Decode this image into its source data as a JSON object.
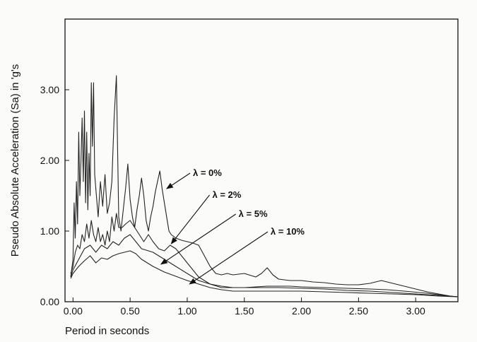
{
  "chart_data": {
    "type": "line",
    "xlabel": "Period in seconds",
    "ylabel": "Pseudo Absolute Acceleration (Sa) in 'g's",
    "xlim": [
      -0.07,
      3.37
    ],
    "ylim": [
      0.0,
      4.0
    ],
    "x_ticks": [
      0.0,
      0.5,
      1.0,
      1.5,
      2.0,
      2.5,
      3.0
    ],
    "x_tick_labels": [
      "0.00",
      "0.50",
      "1.00",
      "1.50",
      "2.00",
      "2.50",
      "3.00"
    ],
    "y_ticks": [
      0.0,
      1.0,
      2.0,
      3.0
    ],
    "y_tick_labels": [
      "0.00",
      "1.00",
      "2.00",
      "3.00"
    ],
    "grid": false,
    "series": [
      {
        "name": "λ = 0%",
        "x": [
          -0.02,
          0.0,
          0.01,
          0.02,
          0.03,
          0.04,
          0.05,
          0.06,
          0.07,
          0.08,
          0.09,
          0.1,
          0.11,
          0.12,
          0.13,
          0.14,
          0.15,
          0.16,
          0.17,
          0.18,
          0.19,
          0.2,
          0.22,
          0.24,
          0.26,
          0.28,
          0.3,
          0.32,
          0.34,
          0.36,
          0.38,
          0.4,
          0.42,
          0.44,
          0.46,
          0.48,
          0.5,
          0.52,
          0.54,
          0.56,
          0.58,
          0.6,
          0.62,
          0.64,
          0.66,
          0.68,
          0.7,
          0.72,
          0.74,
          0.76,
          0.78,
          0.8,
          0.82,
          0.84,
          0.86,
          0.9,
          0.95,
          1.0,
          1.05,
          1.1,
          1.15,
          1.2,
          1.25,
          1.3,
          1.35,
          1.4,
          1.5,
          1.6,
          1.65,
          1.7,
          1.75,
          1.8,
          1.9,
          2.0,
          2.1,
          2.2,
          2.3,
          2.4,
          2.5,
          2.6,
          2.7,
          2.8,
          2.9,
          3.0,
          3.1,
          3.2,
          3.3,
          3.37
        ],
        "y": [
          0.35,
          0.6,
          1.4,
          0.9,
          1.7,
          1.1,
          2.4,
          1.5,
          2.0,
          2.6,
          1.7,
          2.7,
          1.4,
          2.4,
          1.3,
          2.1,
          1.5,
          3.1,
          2.2,
          3.1,
          1.8,
          1.6,
          1.2,
          1.7,
          1.35,
          1.8,
          1.25,
          1.4,
          1.7,
          2.6,
          3.2,
          1.2,
          1.0,
          1.3,
          1.6,
          1.95,
          1.45,
          1.2,
          1.05,
          1.3,
          1.5,
          1.75,
          1.5,
          1.15,
          1.0,
          1.2,
          1.35,
          1.55,
          1.7,
          1.85,
          1.6,
          1.4,
          1.2,
          1.0,
          0.95,
          0.9,
          0.87,
          0.85,
          0.83,
          0.8,
          0.65,
          0.5,
          0.4,
          0.38,
          0.4,
          0.38,
          0.4,
          0.35,
          0.4,
          0.48,
          0.38,
          0.32,
          0.3,
          0.3,
          0.28,
          0.27,
          0.25,
          0.24,
          0.24,
          0.26,
          0.3,
          0.26,
          0.22,
          0.18,
          0.14,
          0.11,
          0.08,
          0.07
        ]
      },
      {
        "name": "λ = 2%",
        "x": [
          -0.02,
          0.0,
          0.02,
          0.04,
          0.06,
          0.08,
          0.1,
          0.12,
          0.14,
          0.16,
          0.18,
          0.2,
          0.22,
          0.24,
          0.26,
          0.28,
          0.3,
          0.32,
          0.34,
          0.36,
          0.38,
          0.4,
          0.43,
          0.46,
          0.5,
          0.54,
          0.58,
          0.62,
          0.66,
          0.7,
          0.75,
          0.8,
          0.85,
          0.9,
          0.95,
          1.0,
          1.05,
          1.1,
          1.2,
          1.3,
          1.4,
          1.5,
          1.7,
          1.9,
          2.0,
          2.2,
          2.4,
          2.6,
          2.75,
          2.9,
          3.1,
          3.3,
          3.37
        ],
        "y": [
          0.4,
          0.5,
          0.7,
          0.8,
          0.75,
          0.95,
          0.85,
          1.1,
          0.9,
          1.15,
          0.95,
          0.85,
          1.05,
          0.85,
          0.95,
          0.8,
          1.0,
          0.85,
          1.2,
          1.0,
          1.25,
          1.05,
          1.05,
          1.1,
          1.15,
          1.05,
          0.95,
          0.85,
          0.95,
          0.85,
          0.75,
          0.72,
          0.8,
          0.75,
          0.65,
          0.55,
          0.45,
          0.35,
          0.25,
          0.2,
          0.2,
          0.2,
          0.22,
          0.22,
          0.21,
          0.2,
          0.19,
          0.18,
          0.17,
          0.15,
          0.12,
          0.08,
          0.07
        ]
      },
      {
        "name": "λ = 5%",
        "x": [
          -0.02,
          0.0,
          0.05,
          0.1,
          0.15,
          0.2,
          0.25,
          0.3,
          0.35,
          0.4,
          0.45,
          0.5,
          0.55,
          0.6,
          0.7,
          0.8,
          0.9,
          1.0,
          1.1,
          1.2,
          1.3,
          1.4,
          1.6,
          1.8,
          2.0,
          2.2,
          2.4,
          2.6,
          2.8,
          3.0,
          3.2,
          3.37
        ],
        "y": [
          0.35,
          0.45,
          0.6,
          0.75,
          0.8,
          0.7,
          0.8,
          0.75,
          0.85,
          0.8,
          0.9,
          0.95,
          0.85,
          0.75,
          0.7,
          0.6,
          0.5,
          0.4,
          0.3,
          0.25,
          0.22,
          0.2,
          0.2,
          0.2,
          0.19,
          0.18,
          0.16,
          0.15,
          0.13,
          0.11,
          0.09,
          0.07
        ]
      },
      {
        "name": "λ = 10%",
        "x": [
          -0.02,
          0.0,
          0.05,
          0.1,
          0.15,
          0.2,
          0.25,
          0.3,
          0.35,
          0.4,
          0.45,
          0.5,
          0.55,
          0.6,
          0.7,
          0.8,
          0.9,
          1.0,
          1.1,
          1.2,
          1.3,
          1.4,
          1.6,
          1.8,
          2.0,
          2.2,
          2.4,
          2.6,
          2.8,
          3.0,
          3.2,
          3.37
        ],
        "y": [
          0.33,
          0.4,
          0.5,
          0.58,
          0.65,
          0.55,
          0.62,
          0.6,
          0.65,
          0.68,
          0.7,
          0.72,
          0.68,
          0.6,
          0.5,
          0.42,
          0.36,
          0.3,
          0.25,
          0.2,
          0.17,
          0.15,
          0.15,
          0.15,
          0.15,
          0.14,
          0.13,
          0.12,
          0.11,
          0.1,
          0.08,
          0.07
        ]
      }
    ],
    "annotations": [
      {
        "text": "λ = 0%",
        "label_x": 1.05,
        "label_y": 1.78,
        "arrow_to_x": 0.82,
        "arrow_to_y": 1.6
      },
      {
        "text": "λ = 2%",
        "label_x": 1.22,
        "label_y": 1.47,
        "arrow_to_x": 0.86,
        "arrow_to_y": 0.82
      },
      {
        "text": "λ = 5%",
        "label_x": 1.45,
        "label_y": 1.2,
        "arrow_to_x": 0.77,
        "arrow_to_y": 0.53
      },
      {
        "text": "λ = 10%",
        "label_x": 1.73,
        "label_y": 0.95,
        "arrow_to_x": 1.02,
        "arrow_to_y": 0.25
      }
    ]
  }
}
